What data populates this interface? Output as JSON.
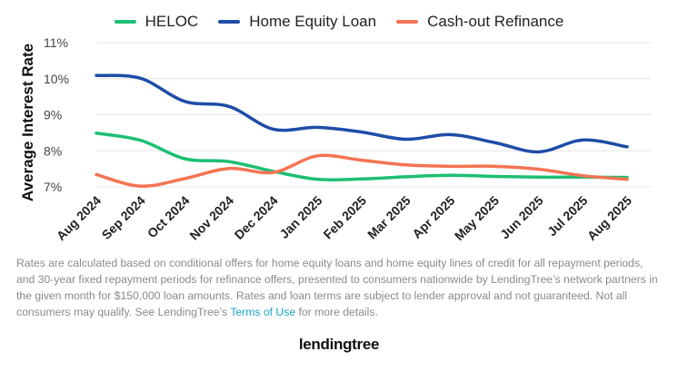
{
  "legend": [
    {
      "name": "HELOC",
      "color": "#1dbf73"
    },
    {
      "name": "Home Equity Loan",
      "color": "#1e4da8"
    },
    {
      "name": "Cash-out Refinance",
      "color": "#f47452"
    }
  ],
  "footnote": {
    "text_before": "Rates are calculated based on conditional offers for home equity loans and home equity lines of credit for all repayment periods, and 30-year fixed repayment periods for refinance offers, presented to consumers nationwide by LendingTree’s network partners in the given month for $150,000 loan amounts. Rates and loan terms are subject to lender approval and not guaranteed. Not all consumers may qualify. See LendingTree’s ",
    "link_text": "Terms of Use",
    "text_after": " for more details."
  },
  "logo": {
    "text": "lendingtree"
  },
  "chart_data": {
    "type": "line",
    "ylabel": "Average Interest Rate",
    "xlabel": "",
    "categories": [
      "Aug 2024",
      "Sep 2024",
      "Oct 2024",
      "Nov 2024",
      "Dec 2024",
      "Jan 2025",
      "Feb 2025",
      "Mar 2025",
      "Apr 2025",
      "May 2025",
      "Jun 2025",
      "Jul 2025",
      "Aug 2025"
    ],
    "ylim": [
      7,
      11
    ],
    "yticks": [
      "7%",
      "8%",
      "9%",
      "10%",
      "11%"
    ],
    "grid": true,
    "legend_position": "top-center",
    "series": [
      {
        "name": "HELOC",
        "color": "#1dbf73",
        "values": [
          8.49,
          8.29,
          7.78,
          7.7,
          7.43,
          7.21,
          7.22,
          7.28,
          7.32,
          7.29,
          7.27,
          7.27,
          7.26
        ]
      },
      {
        "name": "Home Equity Loan",
        "color": "#1e4da8",
        "values": [
          10.09,
          10.01,
          9.37,
          9.23,
          8.6,
          8.65,
          8.52,
          8.32,
          8.45,
          8.23,
          7.97,
          8.3,
          8.11
        ]
      },
      {
        "name": "Cash-out Refinance",
        "color": "#f47452",
        "values": [
          7.34,
          7.02,
          7.23,
          7.51,
          7.4,
          7.86,
          7.74,
          7.61,
          7.57,
          7.57,
          7.49,
          7.31,
          7.21
        ]
      }
    ]
  }
}
